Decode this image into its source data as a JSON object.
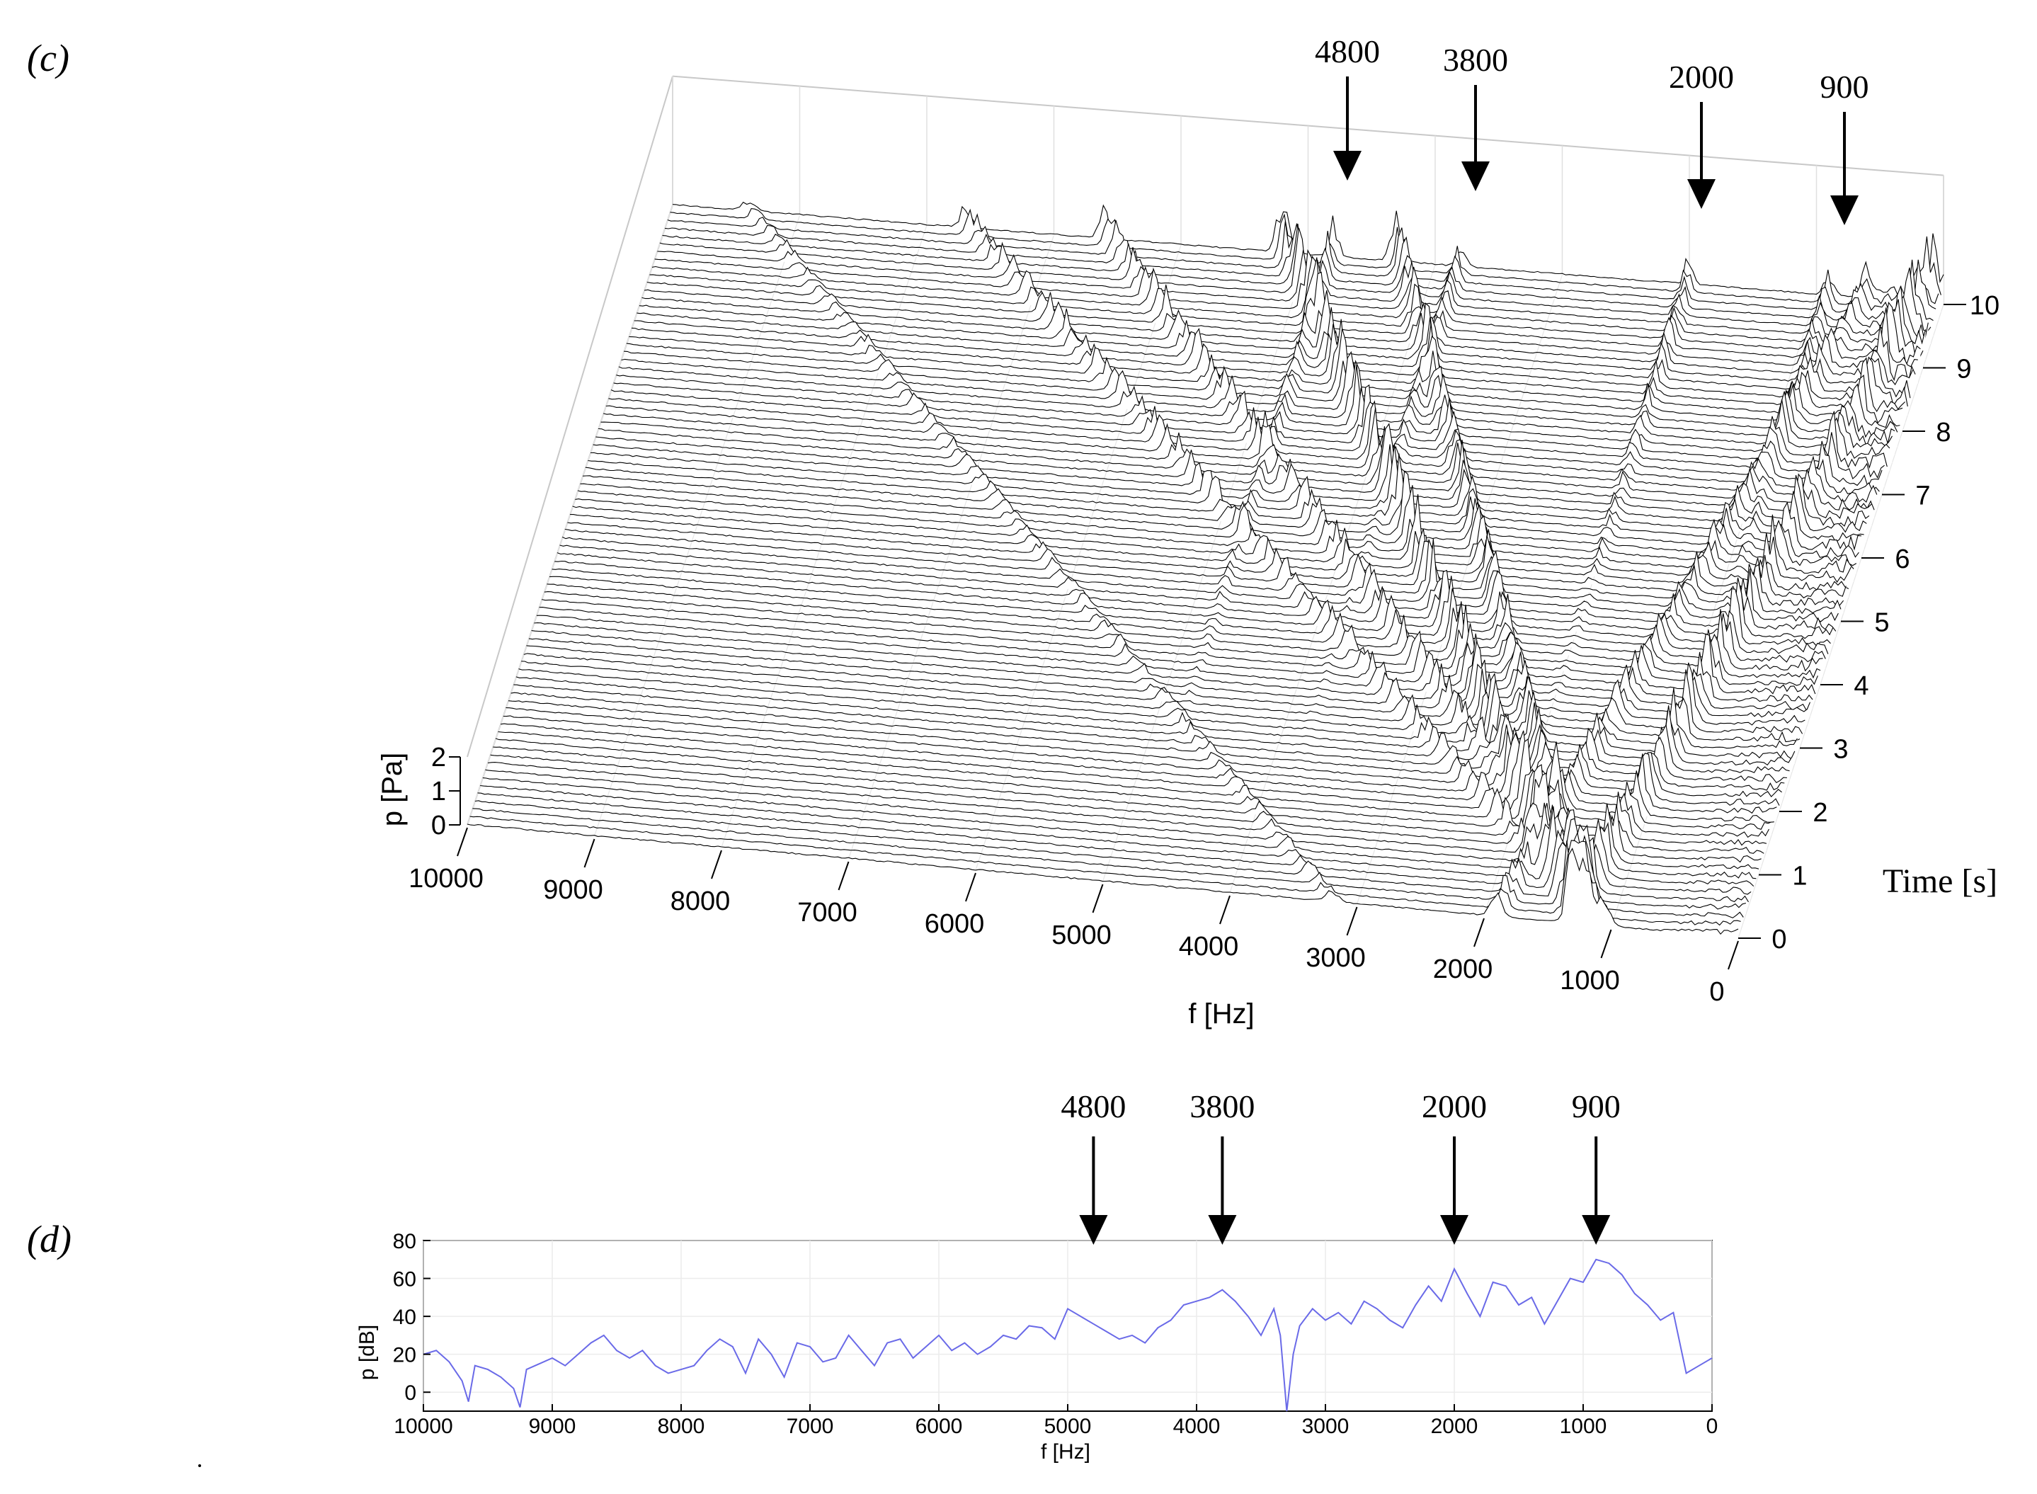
{
  "panels": {
    "c_tag": "(c)",
    "d_tag": "(d)"
  },
  "chart_data": [
    {
      "type": "waterfall",
      "panel": "(c)",
      "xlabel": "f [Hz]",
      "ylabel": "Time [s]",
      "zlabel": "p [Pa]",
      "xlim": [
        10000,
        0
      ],
      "ylim": [
        0,
        10
      ],
      "zlim": [
        0,
        2
      ],
      "x_ticks": [
        "10000",
        "9000",
        "8000",
        "7000",
        "6000",
        "5000",
        "4000",
        "3000",
        "2000",
        "1000",
        "0"
      ],
      "y_ticks": [
        "0",
        "1",
        "2",
        "3",
        "4",
        "5",
        "6",
        "7",
        "8",
        "9",
        "10"
      ],
      "z_ticks": [
        "2",
        "1",
        "0"
      ],
      "annotations": [
        {
          "label": "4800",
          "f": 4800
        },
        {
          "label": "3800",
          "f": 3800
        },
        {
          "label": "2000",
          "f": 2000
        },
        {
          "label": "900",
          "f": 900
        }
      ],
      "traces": {
        "count": 81,
        "t_range": [
          0,
          10
        ],
        "ridges": [
          {
            "f_start": 1300,
            "f_end": 5200,
            "amplitude": 1.6
          },
          {
            "f_start": 1200,
            "f_end": 4300,
            "amplitude": 1.2
          },
          {
            "f_start": 1050,
            "f_end": 6600,
            "amplitude": 0.9
          },
          {
            "f_start": 1150,
            "f_end": 7700,
            "amplitude": 0.7
          },
          {
            "f_start": 3200,
            "f_end": 9400,
            "amplitude": 0.35
          },
          {
            "f_start": 1300,
            "f_end": 100,
            "amplitude": 1.4
          },
          {
            "f_start": 1900,
            "f_end": 600,
            "amplitude": 0.8
          }
        ],
        "stationary": [
          {
            "f": 4800,
            "amplitude": 1.2
          },
          {
            "f": 3800,
            "amplitude": 0.9
          },
          {
            "f": 2000,
            "amplitude": 1.0
          },
          {
            "f": 900,
            "amplitude": 0.9
          }
        ]
      }
    },
    {
      "type": "line",
      "panel": "(d)",
      "xlabel": "f [Hz]",
      "ylabel": "p [dB]",
      "xlim": [
        10000,
        0
      ],
      "ylim": [
        -10,
        80
      ],
      "x_ticks": [
        "10000",
        "9000",
        "8000",
        "7000",
        "6000",
        "5000",
        "4000",
        "3000",
        "2000",
        "1000",
        "0"
      ],
      "y_ticks": [
        "80",
        "60",
        "40",
        "20",
        "0"
      ],
      "series_color": "#6a6ae8",
      "annotations": [
        {
          "label": "4800",
          "f": 4800
        },
        {
          "label": "3800",
          "f": 3800
        },
        {
          "label": "2000",
          "f": 2000
        },
        {
          "label": "900",
          "f": 900
        }
      ],
      "series": [
        {
          "f": [
            10000,
            9900,
            9800,
            9700,
            9650,
            9600,
            9500,
            9400,
            9300,
            9250,
            9200,
            9100,
            9000,
            8900,
            8800,
            8700,
            8600,
            8500,
            8400,
            8300,
            8200,
            8100,
            8000,
            7900,
            7800,
            7700,
            7600,
            7500,
            7400,
            7300,
            7200,
            7100,
            7000,
            6900,
            6800,
            6700,
            6600,
            6500,
            6400,
            6300,
            6200,
            6100,
            6000,
            5900,
            5800,
            5700,
            5600,
            5500,
            5400,
            5300,
            5200,
            5100,
            5000,
            4900,
            4800,
            4700,
            4600,
            4500,
            4400,
            4300,
            4200,
            4100,
            4000,
            3900,
            3800,
            3700,
            3600,
            3500,
            3400,
            3350,
            3300,
            3250,
            3200,
            3100,
            3000,
            2900,
            2800,
            2700,
            2600,
            2500,
            2400,
            2300,
            2200,
            2100,
            2000,
            1900,
            1800,
            1700,
            1600,
            1500,
            1400,
            1300,
            1200,
            1100,
            1000,
            900,
            800,
            700,
            600,
            500,
            400,
            300,
            250,
            200,
            100,
            0
          ],
          "p": [
            20,
            22,
            16,
            6,
            -5,
            14,
            12,
            8,
            2,
            -8,
            12,
            15,
            18,
            14,
            20,
            26,
            30,
            22,
            18,
            22,
            14,
            10,
            12,
            14,
            22,
            28,
            24,
            10,
            28,
            20,
            8,
            26,
            24,
            16,
            18,
            30,
            22,
            14,
            26,
            28,
            18,
            24,
            30,
            22,
            26,
            20,
            24,
            30,
            28,
            35,
            34,
            28,
            44,
            40,
            36,
            32,
            28,
            30,
            26,
            34,
            38,
            46,
            48,
            50,
            54,
            48,
            40,
            30,
            44,
            30,
            -10,
            20,
            35,
            44,
            38,
            42,
            36,
            48,
            44,
            38,
            34,
            46,
            56,
            48,
            65,
            52,
            40,
            58,
            56,
            46,
            50,
            36,
            48,
            60,
            58,
            70,
            68,
            62,
            52,
            46,
            38,
            42,
            26,
            10,
            14,
            18
          ]
        }
      ]
    }
  ]
}
